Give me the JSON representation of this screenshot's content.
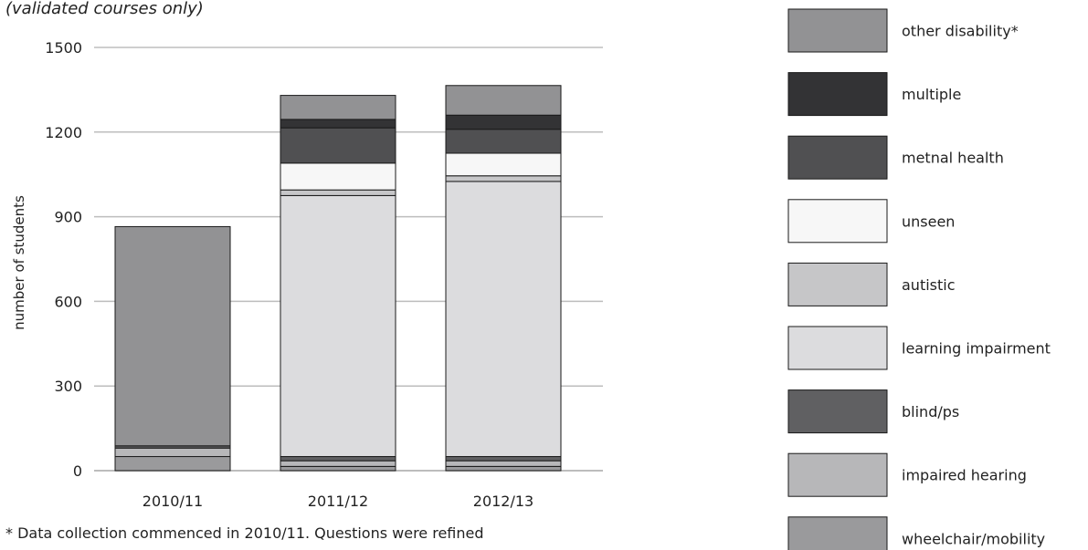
{
  "chart_data": {
    "type": "bar",
    "stacked": true,
    "subtitle": "(validated courses only)",
    "ylabel": "number of students",
    "xlabel": "",
    "ylim": [
      0,
      1500
    ],
    "yticks": [
      0,
      300,
      600,
      900,
      1200,
      1500
    ],
    "categories": [
      "2010/11",
      "2011/12",
      "2012/13"
    ],
    "grid": true,
    "legend_position": "right",
    "series": [
      {
        "name": "wheelchair/mobility",
        "color": "#9a9a9c",
        "values": [
          50,
          15,
          15
        ]
      },
      {
        "name": "impaired hearing",
        "color": "#b7b7b9",
        "values": [
          30,
          20,
          20
        ]
      },
      {
        "name": "blind/ps",
        "color": "#606062",
        "values": [
          8,
          15,
          15
        ]
      },
      {
        "name": "learning impairment",
        "color": "#dcdcde",
        "values": [
          0,
          925,
          975
        ]
      },
      {
        "name": "autistic",
        "color": "#c6c6c8",
        "values": [
          0,
          20,
          20
        ]
      },
      {
        "name": "unseen",
        "color": "#f7f7f7",
        "values": [
          0,
          95,
          80
        ]
      },
      {
        "name": "metnal health",
        "color": "#505052",
        "values": [
          0,
          125,
          85
        ]
      },
      {
        "name": "multiple",
        "color": "#333335",
        "values": [
          0,
          30,
          50
        ]
      },
      {
        "name": "other disability*",
        "color": "#929294",
        "values": [
          777,
          85,
          105
        ]
      }
    ],
    "footnote": "* Data collection commenced in 2010/11. Questions were refined"
  }
}
